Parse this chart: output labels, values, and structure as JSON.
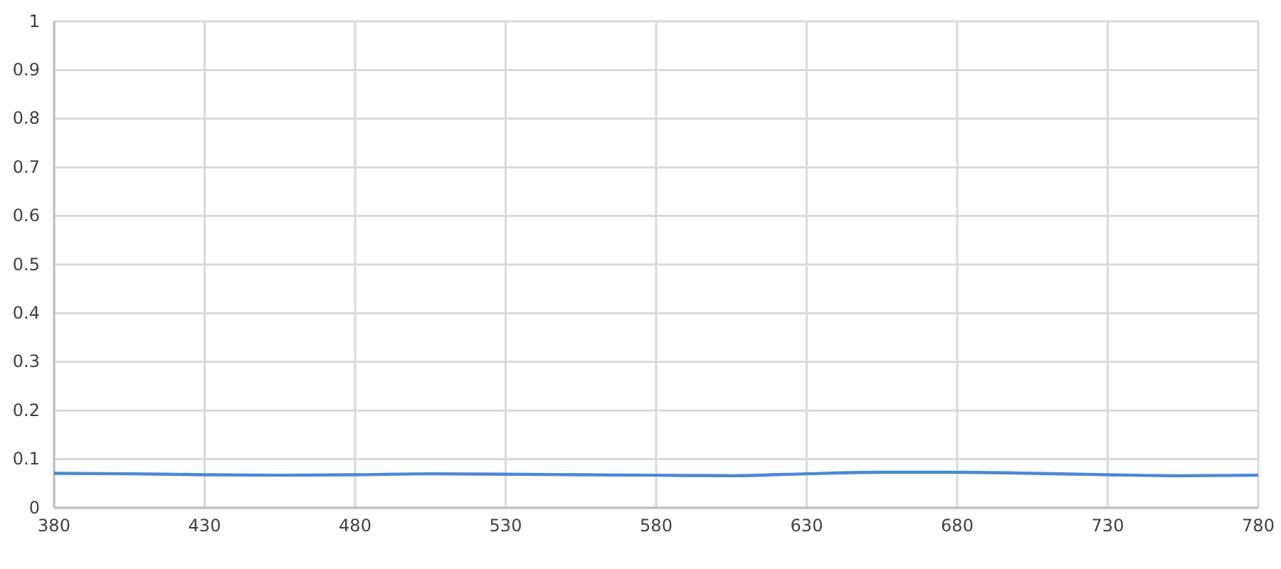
{
  "chart_data": {
    "type": "line",
    "x": [
      380,
      405,
      430,
      455,
      480,
      505,
      530,
      555,
      580,
      605,
      630,
      655,
      680,
      705,
      730,
      755,
      780
    ],
    "series": [
      {
        "color": "#4a89d4",
        "values": [
          0.071,
          0.07,
          0.068,
          0.067,
          0.068,
          0.07,
          0.069,
          0.068,
          0.067,
          0.066,
          0.07,
          0.073,
          0.073,
          0.071,
          0.068,
          0.066,
          0.067
        ]
      }
    ],
    "xlim": [
      380,
      780
    ],
    "xticks": [
      380,
      430,
      480,
      530,
      580,
      630,
      680,
      730,
      780
    ],
    "ylim": [
      0,
      1
    ],
    "yticks": [
      0,
      0.1,
      0.2,
      0.3,
      0.4,
      0.5,
      0.6,
      0.7,
      0.8,
      0.9,
      1
    ],
    "grid": true,
    "line_style": "solid",
    "marker": "none"
  }
}
